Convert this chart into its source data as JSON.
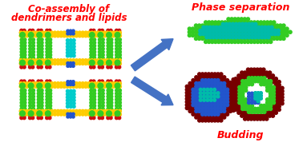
{
  "left_label_line1": "Co-assembly of",
  "left_label_line2": "dendrimers and lipids",
  "right_top_label": "Phase separation",
  "right_bottom_label": "Budding",
  "label_color": "#ff0000",
  "bg_color": "#ffffff",
  "arrow_color": "#4472c4",
  "colors": {
    "red": "#cc1111",
    "green": "#33cc22",
    "green2": "#44dd33",
    "yellow": "#ffcc00",
    "cyan": "#00cccc",
    "blue": "#2255cc",
    "darkred": "#770000",
    "teal": "#00bbaa",
    "navy": "#1133aa"
  }
}
